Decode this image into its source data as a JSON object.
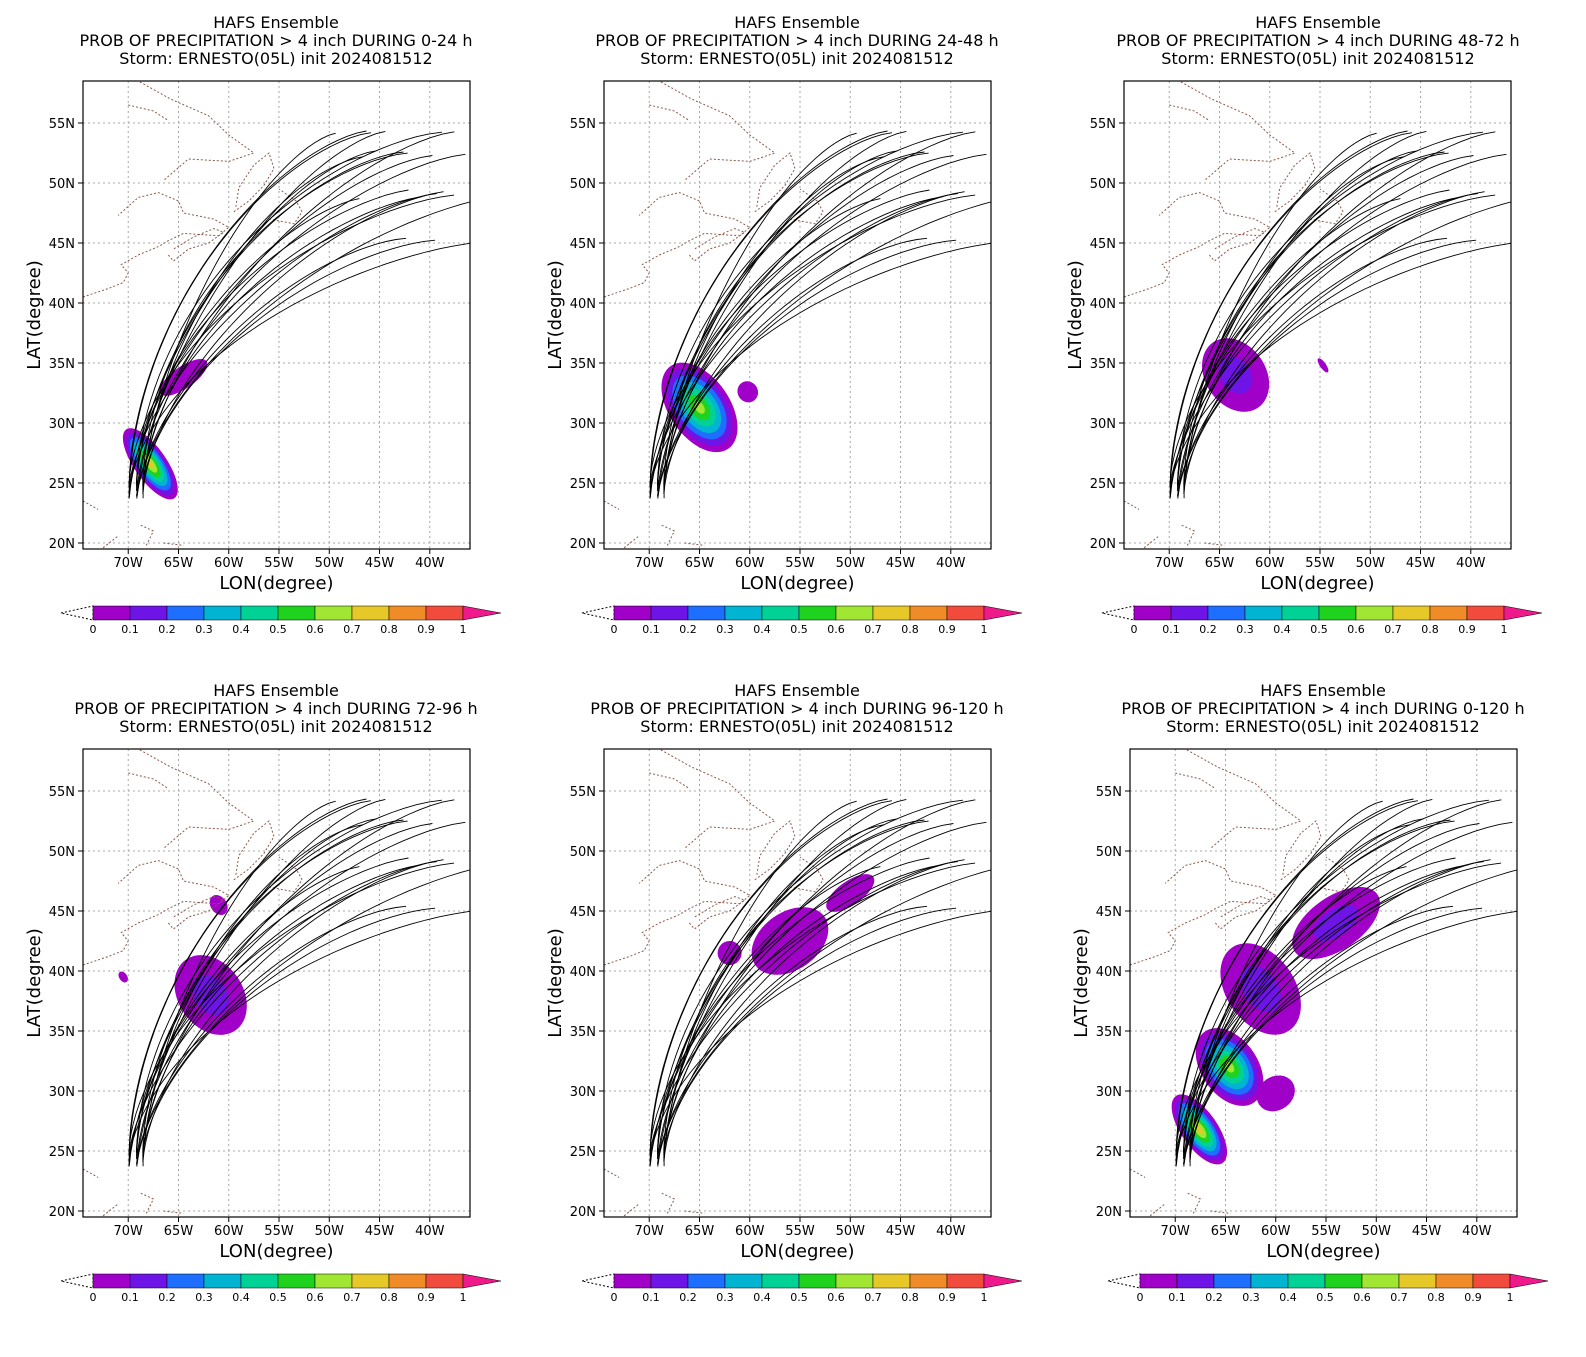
{
  "figure": {
    "panels": [
      {
        "title_lines": [
          "HAFS Ensemble",
          "PROB OF PRECIPITATION > 4 inch DURING  0-24 h",
          "Storm: ERNESTO(05L) init 2024081512"
        ]
      },
      {
        "title_lines": [
          "HAFS Ensemble",
          "PROB OF PRECIPITATION > 4 inch DURING 24-48 h",
          "Storm: ERNESTO(05L) init 2024081512"
        ]
      },
      {
        "title_lines": [
          "HAFS Ensemble",
          "PROB OF PRECIPITATION > 4 inch DURING 48-72 h",
          "Storm: ERNESTO(05L) init 2024081512"
        ]
      },
      {
        "title_lines": [
          "HAFS Ensemble",
          "PROB OF PRECIPITATION > 4 inch DURING 72-96 h",
          "Storm: ERNESTO(05L) init 2024081512"
        ]
      },
      {
        "title_lines": [
          "HAFS Ensemble",
          "PROB OF PRECIPITATION > 4 inch DURING 96-120 h",
          "Storm: ERNESTO(05L) init 2024081512"
        ]
      },
      {
        "title_lines": [
          "HAFS Ensemble",
          "PROB OF PRECIPITATION > 4 inch DURING 0-120 h",
          "Storm: ERNESTO(05L) init 2024081512"
        ]
      }
    ]
  },
  "chart_data": [
    {
      "type": "heatmap",
      "title": "HAFS Ensemble PROB OF PRECIPITATION > 4 inch DURING  0-24 h Storm: ERNESTO(05L) init 2024081512",
      "xlabel": "LON(degree)",
      "ylabel": "LAT(degree)",
      "xlim": [
        -74.5,
        -36
      ],
      "ylim": [
        19.5,
        58.5
      ],
      "xticks": [
        -70,
        -65,
        -60,
        -55,
        -50,
        -45,
        -40
      ],
      "xtick_labels": [
        "70W",
        "65W",
        "60W",
        "55W",
        "50W",
        "45W",
        "40W"
      ],
      "yticks": [
        20,
        25,
        30,
        35,
        40,
        45,
        50,
        55
      ],
      "ytick_labels": [
        "20N",
        "25N",
        "30N",
        "35N",
        "40N",
        "45N",
        "50N",
        "55N"
      ],
      "grid": true,
      "colorbar_ticks": [
        "0",
        "0.1",
        "0.2",
        "0.3",
        "0.4",
        "0.5",
        "0.6",
        "0.7",
        "0.8",
        "0.9",
        "1"
      ],
      "colorbar_colors": [
        "#a000c8",
        "#6e14e6",
        "#1e6eff",
        "#00b4d2",
        "#00d296",
        "#1ed21e",
        "#a0e632",
        "#e6c828",
        "#f08c28",
        "#f04b3c"
      ],
      "prob_regions": [
        {
          "lon": -67.8,
          "lat": 26.6,
          "rlon": 1.6,
          "rlat": 3.5,
          "peak": 0.75
        },
        {
          "lon": -64.5,
          "lat": 33.8,
          "rlon": 2.8,
          "rlat": 0.9,
          "peak": 0.1
        }
      ]
    },
    {
      "type": "heatmap",
      "title": "HAFS Ensemble PROB OF PRECIPITATION > 4 inch DURING 24-48 h Storm: ERNESTO(05L) init 2024081512",
      "xlabel": "LON(degree)",
      "ylabel": "LAT(degree)",
      "xlim": [
        -74.5,
        -36
      ],
      "ylim": [
        19.5,
        58.5
      ],
      "xticks": [
        -70,
        -65,
        -60,
        -55,
        -50,
        -45,
        -40
      ],
      "xtick_labels": [
        "70W",
        "65W",
        "60W",
        "55W",
        "50W",
        "45W",
        "40W"
      ],
      "yticks": [
        20,
        25,
        30,
        35,
        40,
        45,
        50,
        55
      ],
      "ytick_labels": [
        "20N",
        "25N",
        "30N",
        "35N",
        "40N",
        "45N",
        "50N",
        "55N"
      ],
      "grid": true,
      "colorbar_ticks": [
        "0",
        "0.1",
        "0.2",
        "0.3",
        "0.4",
        "0.5",
        "0.6",
        "0.7",
        "0.8",
        "0.9",
        "1"
      ],
      "colorbar_colors": [
        "#a000c8",
        "#6e14e6",
        "#1e6eff",
        "#00b4d2",
        "#00d296",
        "#1ed21e",
        "#a0e632",
        "#e6c828",
        "#f08c28",
        "#f04b3c"
      ],
      "prob_regions": [
        {
          "lon": -65.0,
          "lat": 31.3,
          "rlon": 3.0,
          "rlat": 4.2,
          "peak": 0.65
        },
        {
          "lon": -60.2,
          "lat": 32.6,
          "rlon": 1.0,
          "rlat": 0.9,
          "peak": 0.08
        }
      ]
    },
    {
      "type": "heatmap",
      "title": "HAFS Ensemble PROB OF PRECIPITATION > 4 inch DURING 48-72 h Storm: ERNESTO(05L) init 2024081512",
      "xlabel": "LON(degree)",
      "ylabel": "LAT(degree)",
      "xlim": [
        -74.5,
        -36
      ],
      "ylim": [
        19.5,
        58.5
      ],
      "xticks": [
        -70,
        -65,
        -60,
        -55,
        -50,
        -45,
        -40
      ],
      "xtick_labels": [
        "70W",
        "65W",
        "60W",
        "55W",
        "50W",
        "45W",
        "40W"
      ],
      "yticks": [
        20,
        25,
        30,
        35,
        40,
        45,
        50,
        55
      ],
      "ytick_labels": [
        "20N",
        "25N",
        "30N",
        "35N",
        "40N",
        "45N",
        "50N",
        "55N"
      ],
      "grid": true,
      "colorbar_ticks": [
        "0",
        "0.1",
        "0.2",
        "0.3",
        "0.4",
        "0.5",
        "0.6",
        "0.7",
        "0.8",
        "0.9",
        "1"
      ],
      "colorbar_colors": [
        "#a000c8",
        "#6e14e6",
        "#1e6eff",
        "#00b4d2",
        "#00d296",
        "#1ed21e",
        "#a0e632",
        "#e6c828",
        "#f08c28",
        "#f04b3c"
      ],
      "prob_regions": [
        {
          "lon": -63.4,
          "lat": 34.0,
          "rlon": 3.0,
          "rlat": 3.3,
          "peak": 0.16
        },
        {
          "lon": -54.7,
          "lat": 34.8,
          "rlon": 0.3,
          "rlat": 0.7,
          "peak": 0.08
        }
      ]
    },
    {
      "type": "heatmap",
      "title": "HAFS Ensemble PROB OF PRECIPITATION > 4 inch DURING 72-96 h Storm: ERNESTO(05L) init 2024081512",
      "xlabel": "LON(degree)",
      "ylabel": "LAT(degree)",
      "xlim": [
        -74.5,
        -36
      ],
      "ylim": [
        19.5,
        58.5
      ],
      "xticks": [
        -70,
        -65,
        -60,
        -55,
        -50,
        -45,
        -40
      ],
      "xtick_labels": [
        "70W",
        "65W",
        "60W",
        "55W",
        "50W",
        "45W",
        "40W"
      ],
      "yticks": [
        20,
        25,
        30,
        35,
        40,
        45,
        50,
        55
      ],
      "ytick_labels": [
        "20N",
        "25N",
        "30N",
        "35N",
        "40N",
        "45N",
        "50N",
        "55N"
      ],
      "grid": true,
      "colorbar_ticks": [
        "0",
        "0.1",
        "0.2",
        "0.3",
        "0.4",
        "0.5",
        "0.6",
        "0.7",
        "0.8",
        "0.9",
        "1"
      ],
      "colorbar_colors": [
        "#a000c8",
        "#6e14e6",
        "#1e6eff",
        "#00b4d2",
        "#00d296",
        "#1ed21e",
        "#a0e632",
        "#e6c828",
        "#f08c28",
        "#f04b3c"
      ],
      "prob_regions": [
        {
          "lon": -61.8,
          "lat": 38.0,
          "rlon": 3.2,
          "rlat": 3.6,
          "peak": 0.12
        },
        {
          "lon": -61.0,
          "lat": 45.5,
          "rlon": 0.8,
          "rlat": 0.9,
          "peak": 0.06
        },
        {
          "lon": -70.5,
          "lat": 39.5,
          "rlon": 0.4,
          "rlat": 0.5,
          "peak": 0.06
        }
      ]
    },
    {
      "type": "heatmap",
      "title": "HAFS Ensemble PROB OF PRECIPITATION > 4 inch DURING 96-120 h Storm: ERNESTO(05L) init 2024081512",
      "xlabel": "LON(degree)",
      "ylabel": "LAT(degree)",
      "xlim": [
        -74.5,
        -36
      ],
      "ylim": [
        19.5,
        58.5
      ],
      "xticks": [
        -70,
        -65,
        -60,
        -55,
        -50,
        -45,
        -40
      ],
      "xtick_labels": [
        "70W",
        "65W",
        "60W",
        "55W",
        "50W",
        "45W",
        "40W"
      ],
      "yticks": [
        20,
        25,
        30,
        35,
        40,
        45,
        50,
        55
      ],
      "ytick_labels": [
        "20N",
        "25N",
        "30N",
        "35N",
        "40N",
        "45N",
        "50N",
        "55N"
      ],
      "grid": true,
      "colorbar_ticks": [
        "0",
        "0.1",
        "0.2",
        "0.3",
        "0.4",
        "0.5",
        "0.6",
        "0.7",
        "0.8",
        "0.9",
        "1"
      ],
      "colorbar_colors": [
        "#a000c8",
        "#6e14e6",
        "#1e6eff",
        "#00b4d2",
        "#00d296",
        "#1ed21e",
        "#a0e632",
        "#e6c828",
        "#f08c28",
        "#f04b3c"
      ],
      "prob_regions": [
        {
          "lon": -56.0,
          "lat": 42.5,
          "rlon": 4.2,
          "rlat": 2.4,
          "peak": 0.08
        },
        {
          "lon": -50.0,
          "lat": 46.5,
          "rlon": 2.8,
          "rlat": 1.0,
          "peak": 0.08
        },
        {
          "lon": -62.0,
          "lat": 41.5,
          "rlon": 1.2,
          "rlat": 1.0,
          "peak": 0.06
        }
      ]
    },
    {
      "type": "heatmap",
      "title": "HAFS Ensemble PROB OF PRECIPITATION > 4 inch DURING 0-120 h Storm: ERNESTO(05L) init 2024081512",
      "xlabel": "LON(degree)",
      "ylabel": "LAT(degree)",
      "xlim": [
        -74.5,
        -36
      ],
      "ylim": [
        19.5,
        58.5
      ],
      "xticks": [
        -70,
        -65,
        -60,
        -55,
        -50,
        -45,
        -40
      ],
      "xtick_labels": [
        "70W",
        "65W",
        "60W",
        "55W",
        "50W",
        "45W",
        "40W"
      ],
      "yticks": [
        20,
        25,
        30,
        35,
        40,
        45,
        50,
        55
      ],
      "ytick_labels": [
        "20N",
        "25N",
        "30N",
        "35N",
        "40N",
        "45N",
        "50N",
        "55N"
      ],
      "grid": true,
      "colorbar_ticks": [
        "0",
        "0.1",
        "0.2",
        "0.3",
        "0.4",
        "0.5",
        "0.6",
        "0.7",
        "0.8",
        "0.9",
        "1"
      ],
      "colorbar_colors": [
        "#a000c8",
        "#6e14e6",
        "#1e6eff",
        "#00b4d2",
        "#00d296",
        "#1ed21e",
        "#a0e632",
        "#e6c828",
        "#f08c28",
        "#f04b3c"
      ],
      "prob_regions": [
        {
          "lon": -67.6,
          "lat": 26.8,
          "rlon": 1.8,
          "rlat": 3.4,
          "peak": 0.78
        },
        {
          "lon": -64.6,
          "lat": 32.0,
          "rlon": 2.8,
          "rlat": 3.6,
          "peak": 0.7
        },
        {
          "lon": -61.5,
          "lat": 38.5,
          "rlon": 3.4,
          "rlat": 4.2,
          "peak": 0.2
        },
        {
          "lon": -54.0,
          "lat": 44.0,
          "rlon": 5.0,
          "rlat": 2.2,
          "peak": 0.12
        },
        {
          "lon": -60.0,
          "lat": 29.8,
          "rlon": 2.0,
          "rlat": 1.4,
          "peak": 0.1
        }
      ]
    }
  ]
}
